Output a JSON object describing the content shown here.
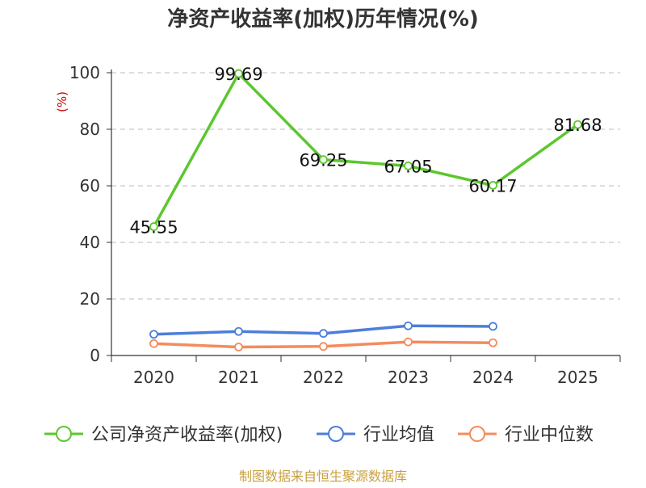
{
  "chart_data": {
    "type": "line",
    "title": "净资产收益率(加权)历年情况(%)",
    "ylabel": "(%)",
    "xlabel": "",
    "categories": [
      "2020",
      "2021",
      "2022",
      "2023",
      "2024",
      "2025"
    ],
    "ylim": [
      0,
      100
    ],
    "yticks": [
      0,
      20,
      40,
      60,
      80,
      100
    ],
    "grid": true,
    "legend_position": "bottom",
    "series": [
      {
        "name": "公司净资产收益率(加权)",
        "color": "#5CC72E",
        "show_labels": true,
        "values": [
          45.55,
          99.69,
          69.25,
          67.05,
          60.17,
          81.68
        ],
        "labels": [
          "45.55",
          "99.69",
          "69.25",
          "67.05",
          "60.17",
          "81.68"
        ]
      },
      {
        "name": "行业均值",
        "color": "#4C7EDB",
        "show_labels": false,
        "values": [
          7.5,
          8.5,
          7.8,
          10.5,
          10.3,
          null
        ]
      },
      {
        "name": "行业中位数",
        "color": "#F58B5C",
        "show_labels": false,
        "values": [
          4.2,
          3.0,
          3.2,
          4.8,
          4.5,
          null
        ]
      }
    ]
  },
  "source": "制图数据来自恒生聚源数据库",
  "colors": {
    "title": "#333333",
    "axis": "#333333",
    "grid": "#bbbbbb",
    "ylabel": "#cc0000",
    "source": "#c8a040"
  }
}
